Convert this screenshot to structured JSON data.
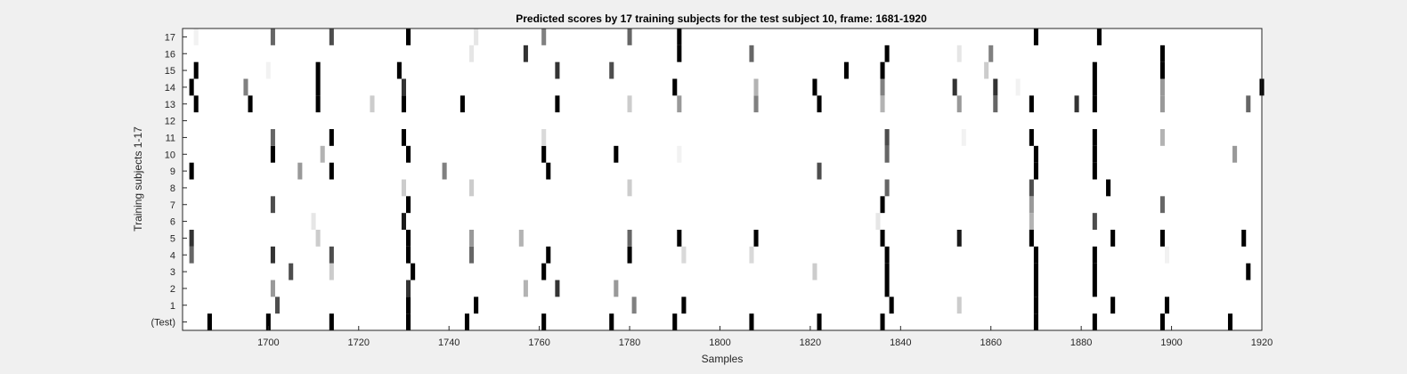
{
  "chart_data": {
    "type": "heatmap",
    "title": "Predicted scores by 17 training subjects for the test subject 10, frame: 1681-1920",
    "xlabel": "Samples",
    "ylabel": "Training subjects 1-17",
    "xlim": [
      1681,
      1920
    ],
    "xticks": [
      1700,
      1720,
      1740,
      1760,
      1780,
      1800,
      1820,
      1840,
      1860,
      1880,
      1900,
      1920
    ],
    "rows": [
      "(Test)",
      "1",
      "2",
      "3",
      "4",
      "5",
      "6",
      "7",
      "8",
      "9",
      "10",
      "11",
      "12",
      "13",
      "14",
      "15",
      "16",
      "17"
    ],
    "colormap": "gray-reversed",
    "background": "#ffffff",
    "value_range": [
      0,
      1
    ],
    "cells": [
      {
        "row": "(Test)",
        "marks": [
          [
            1687,
            1
          ],
          [
            1700,
            1
          ],
          [
            1714,
            1
          ],
          [
            1731,
            1
          ],
          [
            1744,
            1
          ],
          [
            1761,
            1
          ],
          [
            1776,
            1
          ],
          [
            1790,
            1
          ],
          [
            1807,
            1
          ],
          [
            1822,
            1
          ],
          [
            1836,
            1
          ],
          [
            1870,
            1
          ],
          [
            1883,
            1
          ],
          [
            1898,
            1
          ],
          [
            1913,
            1
          ]
        ]
      },
      {
        "row": "1",
        "marks": [
          [
            1702,
            0.7
          ],
          [
            1731,
            1
          ],
          [
            1746,
            1
          ],
          [
            1781,
            0.5
          ],
          [
            1792,
            1
          ],
          [
            1838,
            1
          ],
          [
            1853,
            0.2
          ],
          [
            1870,
            1
          ],
          [
            1887,
            1
          ],
          [
            1899,
            1
          ]
        ]
      },
      {
        "row": "2",
        "marks": [
          [
            1701,
            0.4
          ],
          [
            1731,
            0.8
          ],
          [
            1757,
            0.3
          ],
          [
            1764,
            0.8
          ],
          [
            1777,
            0.4
          ],
          [
            1837,
            1
          ],
          [
            1870,
            1
          ],
          [
            1883,
            1
          ]
        ]
      },
      {
        "row": "3",
        "marks": [
          [
            1705,
            0.7
          ],
          [
            1714,
            0.2
          ],
          [
            1732,
            1
          ],
          [
            1761,
            1
          ],
          [
            1821,
            0.2
          ],
          [
            1837,
            1
          ],
          [
            1870,
            1
          ],
          [
            1883,
            1
          ],
          [
            1917,
            1
          ]
        ]
      },
      {
        "row": "4",
        "marks": [
          [
            1683,
            0.6
          ],
          [
            1701,
            0.8
          ],
          [
            1714,
            0.7
          ],
          [
            1731,
            1
          ],
          [
            1745,
            0.6
          ],
          [
            1762,
            1
          ],
          [
            1780,
            1
          ],
          [
            1792,
            0.15
          ],
          [
            1807,
            0.15
          ],
          [
            1837,
            1
          ],
          [
            1870,
            1
          ],
          [
            1883,
            1
          ],
          [
            1899,
            0.05
          ]
        ]
      },
      {
        "row": "5",
        "marks": [
          [
            1683,
            0.8
          ],
          [
            1711,
            0.2
          ],
          [
            1731,
            1
          ],
          [
            1745,
            0.4
          ],
          [
            1756,
            0.3
          ],
          [
            1780,
            0.6
          ],
          [
            1791,
            1
          ],
          [
            1808,
            1
          ],
          [
            1836,
            1
          ],
          [
            1853,
            0.9
          ],
          [
            1869,
            1
          ],
          [
            1887,
            1
          ],
          [
            1898,
            1
          ],
          [
            1916,
            1
          ]
        ]
      },
      {
        "row": "6",
        "marks": [
          [
            1710,
            0.1
          ],
          [
            1730,
            0.9
          ],
          [
            1835,
            0.1
          ],
          [
            1869,
            0.3
          ],
          [
            1883,
            0.7
          ]
        ]
      },
      {
        "row": "7",
        "marks": [
          [
            1701,
            0.7
          ],
          [
            1731,
            1
          ],
          [
            1836,
            1
          ],
          [
            1869,
            0.4
          ],
          [
            1898,
            0.6
          ]
        ]
      },
      {
        "row": "8",
        "marks": [
          [
            1730,
            0.2
          ],
          [
            1745,
            0.2
          ],
          [
            1780,
            0.2
          ],
          [
            1837,
            0.6
          ],
          [
            1869,
            0.7
          ],
          [
            1886,
            1
          ]
        ]
      },
      {
        "row": "9",
        "marks": [
          [
            1683,
            1
          ],
          [
            1707,
            0.4
          ],
          [
            1714,
            1
          ],
          [
            1739,
            0.5
          ],
          [
            1762,
            1
          ],
          [
            1822,
            0.7
          ],
          [
            1870,
            1
          ],
          [
            1883,
            1
          ]
        ]
      },
      {
        "row": "10",
        "marks": [
          [
            1701,
            1
          ],
          [
            1712,
            0.3
          ],
          [
            1731,
            1
          ],
          [
            1761,
            1
          ],
          [
            1777,
            1
          ],
          [
            1791,
            0.05
          ],
          [
            1837,
            0.6
          ],
          [
            1870,
            1
          ],
          [
            1883,
            1
          ],
          [
            1914,
            0.4
          ]
        ]
      },
      {
        "row": "11",
        "marks": [
          [
            1701,
            0.6
          ],
          [
            1714,
            1
          ],
          [
            1730,
            1
          ],
          [
            1761,
            0.15
          ],
          [
            1837,
            0.7
          ],
          [
            1854,
            0.05
          ],
          [
            1869,
            1
          ],
          [
            1883,
            1
          ],
          [
            1898,
            0.3
          ]
        ]
      },
      {
        "row": "12",
        "marks": []
      },
      {
        "row": "13",
        "marks": [
          [
            1684,
            1
          ],
          [
            1696,
            1
          ],
          [
            1711,
            1
          ],
          [
            1723,
            0.2
          ],
          [
            1730,
            1
          ],
          [
            1743,
            1
          ],
          [
            1764,
            1
          ],
          [
            1780,
            0.2
          ],
          [
            1791,
            0.4
          ],
          [
            1808,
            0.5
          ],
          [
            1822,
            1
          ],
          [
            1836,
            0.3
          ],
          [
            1853,
            0.4
          ],
          [
            1861,
            0.6
          ],
          [
            1869,
            1
          ],
          [
            1879,
            0.8
          ],
          [
            1883,
            1
          ],
          [
            1898,
            0.4
          ],
          [
            1917,
            0.6
          ]
        ]
      },
      {
        "row": "14",
        "marks": [
          [
            1683,
            1
          ],
          [
            1695,
            0.5
          ],
          [
            1711,
            1
          ],
          [
            1730,
            0.8
          ],
          [
            1790,
            1
          ],
          [
            1808,
            0.3
          ],
          [
            1821,
            1
          ],
          [
            1836,
            0.5
          ],
          [
            1852,
            0.8
          ],
          [
            1861,
            0.8
          ],
          [
            1866,
            0.05
          ],
          [
            1883,
            1
          ],
          [
            1898,
            0.4
          ],
          [
            1920,
            1
          ]
        ]
      },
      {
        "row": "15",
        "marks": [
          [
            1684,
            1
          ],
          [
            1700,
            0.05
          ],
          [
            1711,
            1
          ],
          [
            1729,
            1
          ],
          [
            1764,
            0.8
          ],
          [
            1776,
            0.7
          ],
          [
            1828,
            1
          ],
          [
            1836,
            1
          ],
          [
            1859,
            0.2
          ],
          [
            1883,
            1
          ],
          [
            1898,
            1
          ]
        ]
      },
      {
        "row": "16",
        "marks": [
          [
            1745,
            0.1
          ],
          [
            1757,
            0.8
          ],
          [
            1791,
            1
          ],
          [
            1807,
            0.6
          ],
          [
            1837,
            1
          ],
          [
            1853,
            0.1
          ],
          [
            1860,
            0.5
          ],
          [
            1898,
            1
          ]
        ]
      },
      {
        "row": "17",
        "marks": [
          [
            1684,
            0.05
          ],
          [
            1701,
            0.6
          ],
          [
            1714,
            0.7
          ],
          [
            1731,
            1
          ],
          [
            1746,
            0.1
          ],
          [
            1761,
            0.5
          ],
          [
            1780,
            0.6
          ],
          [
            1791,
            1
          ],
          [
            1870,
            1
          ],
          [
            1884,
            1
          ]
        ]
      }
    ]
  }
}
